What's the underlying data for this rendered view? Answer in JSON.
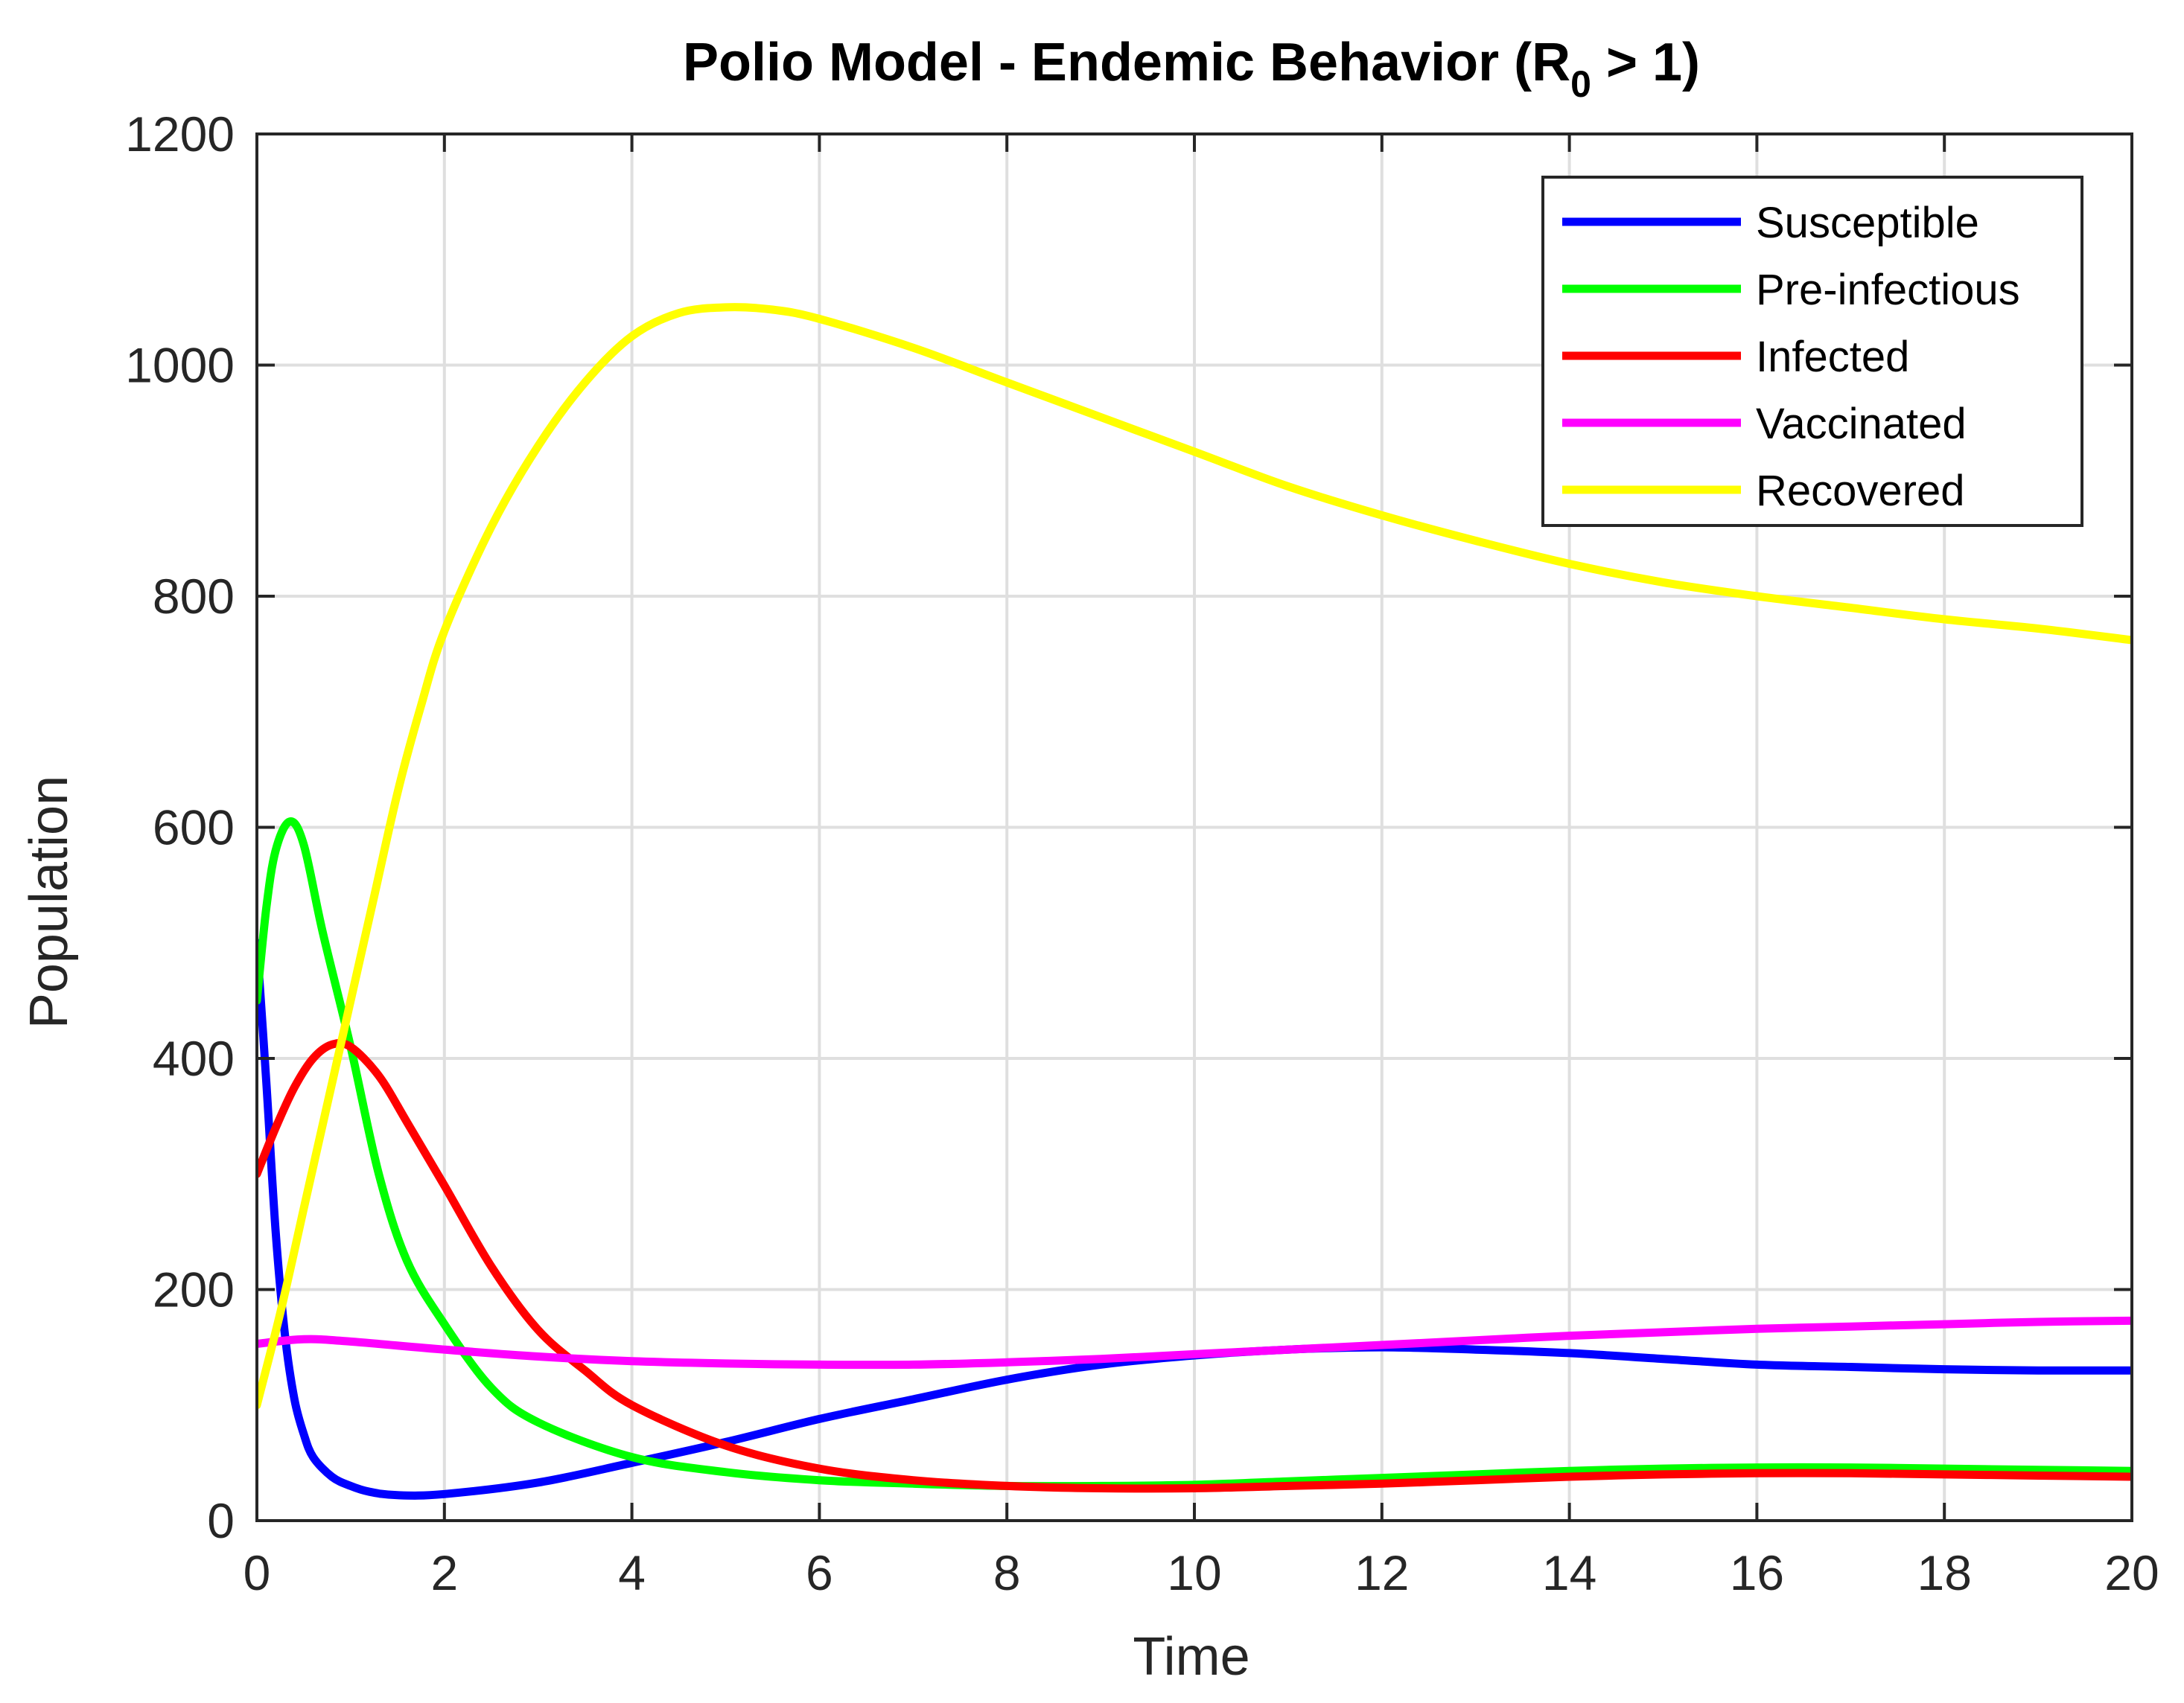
{
  "chart_data": {
    "type": "line",
    "title": {
      "main": "Polio Model - Endemic Behavior (R",
      "subscript": "0",
      "suffix": " > 1)"
    },
    "xlabel": "Time",
    "ylabel": "Population",
    "xlim": [
      0,
      20
    ],
    "ylim": [
      0,
      1200
    ],
    "xticks": [
      0,
      2,
      4,
      6,
      8,
      10,
      12,
      14,
      16,
      18,
      20
    ],
    "yticks": [
      0,
      200,
      400,
      600,
      800,
      1000,
      1200
    ],
    "grid": true,
    "legend_position": "top-right",
    "series": [
      {
        "name": "Susceptible",
        "color": "#0000ff",
        "points": [
          [
            0,
            500
          ],
          [
            0.1,
            380
          ],
          [
            0.2,
            250
          ],
          [
            0.3,
            160
          ],
          [
            0.4,
            105
          ],
          [
            0.5,
            75
          ],
          [
            0.6,
            55
          ],
          [
            0.8,
            38
          ],
          [
            1.0,
            30
          ],
          [
            1.2,
            25
          ],
          [
            1.5,
            22
          ],
          [
            2,
            23
          ],
          [
            3,
            33
          ],
          [
            4,
            50
          ],
          [
            5,
            68
          ],
          [
            6,
            88
          ],
          [
            7,
            105
          ],
          [
            8,
            122
          ],
          [
            9,
            135
          ],
          [
            10,
            143
          ],
          [
            11,
            148
          ],
          [
            12,
            150
          ],
          [
            13,
            148
          ],
          [
            14,
            145
          ],
          [
            15,
            140
          ],
          [
            16,
            135
          ],
          [
            17,
            133
          ],
          [
            18,
            131
          ],
          [
            19,
            130
          ],
          [
            20,
            130
          ]
        ]
      },
      {
        "name": "Pre-infectious",
        "color": "#00ff00",
        "points": [
          [
            0,
            450
          ],
          [
            0.1,
            530
          ],
          [
            0.2,
            580
          ],
          [
            0.35,
            605
          ],
          [
            0.5,
            585
          ],
          [
            0.7,
            510
          ],
          [
            1.0,
            410
          ],
          [
            1.3,
            300
          ],
          [
            1.6,
            225
          ],
          [
            2,
            170
          ],
          [
            2.5,
            115
          ],
          [
            3,
            85
          ],
          [
            4,
            55
          ],
          [
            5,
            42
          ],
          [
            6,
            35
          ],
          [
            7,
            32
          ],
          [
            8,
            30
          ],
          [
            9,
            30
          ],
          [
            10,
            31
          ],
          [
            11,
            34
          ],
          [
            12,
            37
          ],
          [
            13,
            40
          ],
          [
            14,
            43
          ],
          [
            15,
            45
          ],
          [
            16,
            46
          ],
          [
            17,
            46
          ],
          [
            18,
            45
          ],
          [
            19,
            44
          ],
          [
            20,
            43
          ]
        ]
      },
      {
        "name": "Infected",
        "color": "#ff0000",
        "points": [
          [
            0,
            300
          ],
          [
            0.2,
            340
          ],
          [
            0.4,
            375
          ],
          [
            0.6,
            400
          ],
          [
            0.8,
            412
          ],
          [
            1.0,
            410
          ],
          [
            1.3,
            385
          ],
          [
            1.6,
            345
          ],
          [
            2,
            290
          ],
          [
            2.5,
            220
          ],
          [
            3,
            165
          ],
          [
            3.5,
            130
          ],
          [
            4,
            100
          ],
          [
            5,
            65
          ],
          [
            6,
            45
          ],
          [
            7,
            35
          ],
          [
            8,
            30
          ],
          [
            9,
            28
          ],
          [
            10,
            28
          ],
          [
            11,
            30
          ],
          [
            12,
            32
          ],
          [
            13,
            35
          ],
          [
            14,
            38
          ],
          [
            15,
            40
          ],
          [
            16,
            41
          ],
          [
            17,
            41
          ],
          [
            18,
            40
          ],
          [
            19,
            39
          ],
          [
            20,
            38
          ]
        ]
      },
      {
        "name": "Vaccinated",
        "color": "#ff00ff",
        "points": [
          [
            0,
            153
          ],
          [
            0.5,
            157
          ],
          [
            1,
            155
          ],
          [
            2,
            148
          ],
          [
            3,
            142
          ],
          [
            4,
            138
          ],
          [
            5,
            136
          ],
          [
            6,
            135
          ],
          [
            7,
            135
          ],
          [
            8,
            137
          ],
          [
            9,
            140
          ],
          [
            10,
            144
          ],
          [
            11,
            148
          ],
          [
            12,
            152
          ],
          [
            13,
            156
          ],
          [
            14,
            160
          ],
          [
            15,
            163
          ],
          [
            16,
            166
          ],
          [
            17,
            168
          ],
          [
            18,
            170
          ],
          [
            19,
            172
          ],
          [
            20,
            173
          ]
        ]
      },
      {
        "name": "Recovered",
        "color": "#ffff00",
        "points": [
          [
            0,
            100
          ],
          [
            0.25,
            180
          ],
          [
            0.5,
            270
          ],
          [
            0.75,
            360
          ],
          [
            1,
            450
          ],
          [
            1.25,
            540
          ],
          [
            1.5,
            630
          ],
          [
            1.75,
            705
          ],
          [
            2,
            770
          ],
          [
            2.5,
            860
          ],
          [
            3,
            930
          ],
          [
            3.5,
            985
          ],
          [
            4,
            1025
          ],
          [
            4.5,
            1045
          ],
          [
            5,
            1050
          ],
          [
            5.5,
            1048
          ],
          [
            6,
            1040
          ],
          [
            7,
            1015
          ],
          [
            8,
            985
          ],
          [
            9,
            955
          ],
          [
            10,
            925
          ],
          [
            11,
            895
          ],
          [
            12,
            870
          ],
          [
            13,
            848
          ],
          [
            14,
            828
          ],
          [
            15,
            812
          ],
          [
            16,
            800
          ],
          [
            17,
            790
          ],
          [
            18,
            780
          ],
          [
            19,
            772
          ],
          [
            20,
            762
          ]
        ]
      }
    ]
  }
}
